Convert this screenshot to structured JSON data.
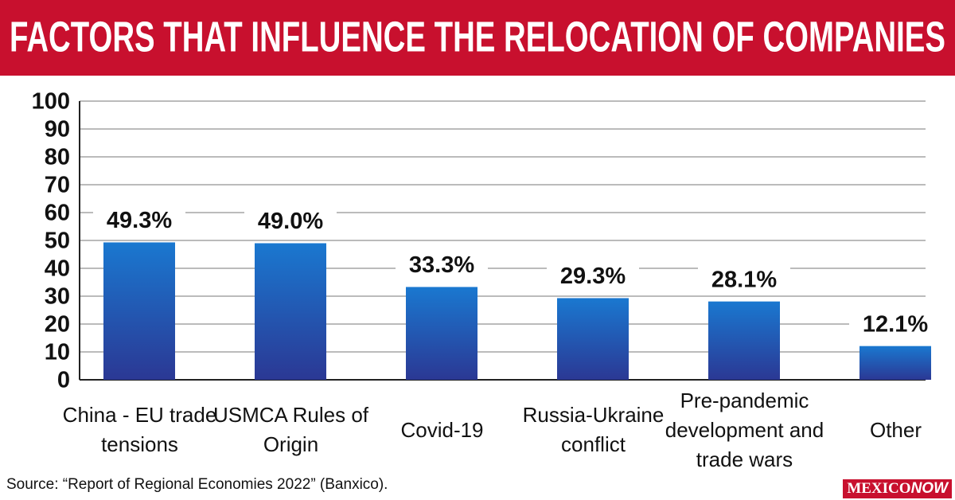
{
  "chart_data": {
    "type": "bar",
    "title": "FACTORS THAT INFLUENCE THE RELOCATION OF COMPANIES",
    "categories": [
      "China - EU trade tensions",
      "USMCA Rules of Origin",
      "Covid-19",
      "Russia-Ukraine conflict",
      "Pre-pandemic development and trade wars",
      "Other"
    ],
    "values": [
      49.3,
      49.0,
      33.3,
      29.3,
      28.1,
      12.1
    ],
    "value_labels": [
      "49.3%",
      "49.0%",
      "33.3%",
      "29.3%",
      "28.1%",
      "12.1%"
    ],
    "colors": [
      "#1a78d0",
      "#2b3894"
    ],
    "ylim": [
      0,
      100
    ],
    "yticks": [
      0,
      10,
      20,
      30,
      40,
      50,
      60,
      70,
      80,
      90,
      100
    ],
    "grid": true,
    "source": "Source: “Report of Regional Economies 2022” (Banxico).",
    "logo": [
      "MEXICO",
      "NOW"
    ]
  }
}
